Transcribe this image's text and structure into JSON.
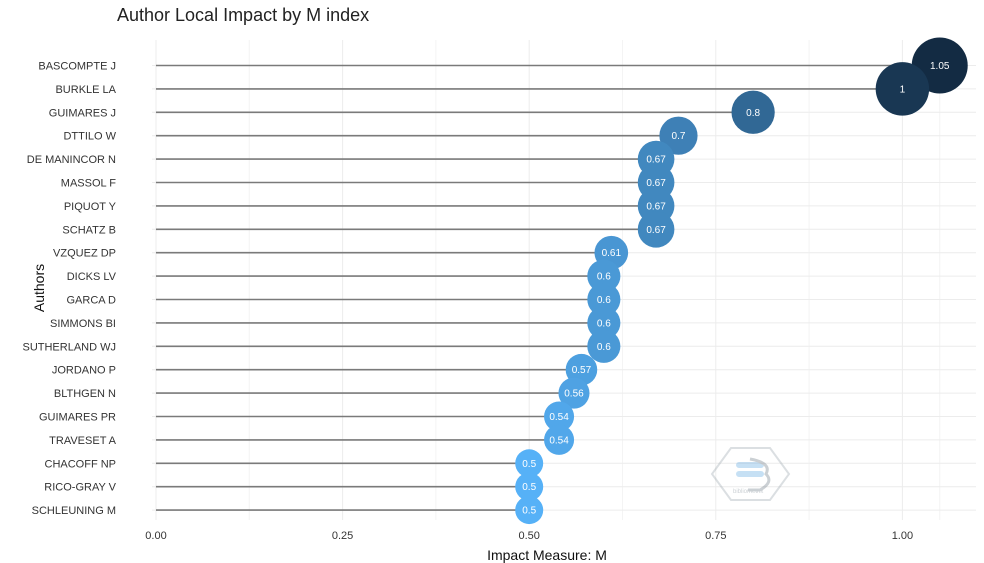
{
  "chart_data": {
    "type": "scatter",
    "title": "Author Local Impact by M index",
    "xlabel": "Impact Measure: M",
    "ylabel": "Authors",
    "xlim": [
      0,
      1.1
    ],
    "xticks": [
      0,
      0.25,
      0.5,
      0.75,
      1.0
    ],
    "xtick_labels": [
      "0.00",
      "0.25",
      "0.50",
      "0.75",
      "1.00"
    ],
    "grid": true,
    "color_scale": {
      "low": "#56B1F7",
      "high": "#132B43"
    },
    "categories": [
      "BASCOMPTE J",
      "BURKLE LA",
      "GUIMARES J",
      "DTTILO W",
      "DE MANINCOR N",
      "MASSOL F",
      "PIQUOT Y",
      "SCHATZ B",
      "VZQUEZ DP",
      "DICKS LV",
      "GARCA D",
      "SIMMONS BI",
      "SUTHERLAND WJ",
      "JORDANO P",
      "BLTHGEN N",
      "GUIMARES PR",
      "TRAVESET A",
      "CHACOFF NP",
      "RICO-GRAY V",
      "SCHLEUNING M"
    ],
    "values": [
      1.05,
      1,
      0.8,
      0.7,
      0.67,
      0.67,
      0.67,
      0.67,
      0.61,
      0.6,
      0.6,
      0.6,
      0.6,
      0.57,
      0.56,
      0.54,
      0.54,
      0.5,
      0.5,
      0.5
    ],
    "value_labels": [
      "1.05",
      "1",
      "0.8",
      "0.7",
      "0.67",
      "0.67",
      "0.67",
      "0.67",
      "0.61",
      "0.6",
      "0.6",
      "0.6",
      "0.6",
      "0.57",
      "0.56",
      "0.54",
      "0.54",
      "0.5",
      "0.5",
      "0.5"
    ]
  },
  "watermark": {
    "icon": "bibliometrix-hexagon-logo",
    "text": "bibliometrix"
  }
}
